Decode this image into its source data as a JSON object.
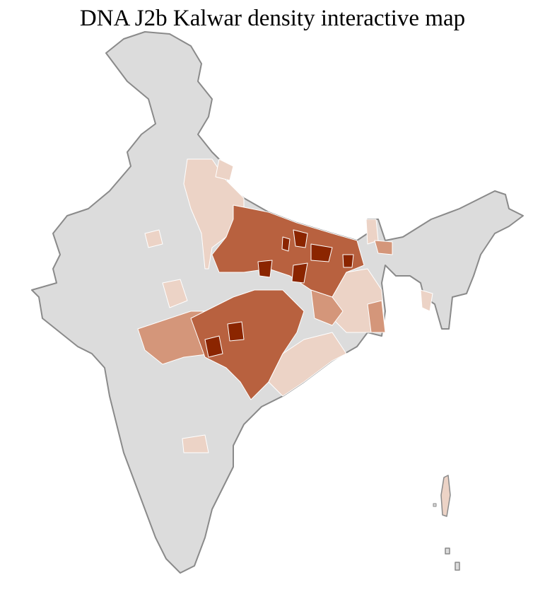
{
  "title": "DNA J2b Kalwar density interactive map",
  "colors": {
    "no_data": "#dcdcdc",
    "very_low": "#ecd3c6",
    "low": "#d4967a",
    "medium": "#b8613f",
    "high": "#8b2500",
    "state_border": "#8a8a8a",
    "district_border": "#ffffff"
  }
}
